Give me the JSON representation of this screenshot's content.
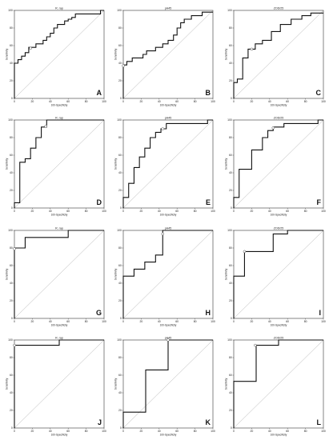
{
  "figure": {
    "panels_per_row": 3
  },
  "chart_data": [
    {
      "type": "line",
      "letter": "A",
      "title": "R. rap",
      "xlabel": "100-Specificity",
      "ylabel": "Sensitivity",
      "xlim": [
        0,
        100
      ],
      "ylim": [
        0,
        100
      ],
      "xticks": [
        0,
        20,
        40,
        60,
        80,
        100
      ],
      "yticks": [
        0,
        20,
        40,
        60,
        80,
        100
      ],
      "diagonal": true,
      "series": [
        {
          "x": [
            0,
            0,
            4,
            4,
            8,
            8,
            12,
            12,
            16,
            16,
            24,
            24,
            32,
            32,
            36,
            36,
            40,
            40,
            44,
            44,
            48,
            48,
            56,
            56,
            60,
            60,
            64,
            64,
            68,
            68,
            96,
            96,
            100
          ],
          "y": [
            0,
            40,
            40,
            44,
            44,
            48,
            48,
            52,
            52,
            58,
            58,
            62,
            62,
            66,
            66,
            70,
            70,
            74,
            74,
            80,
            80,
            84,
            84,
            88,
            88,
            90,
            90,
            92,
            92,
            96,
            96,
            100,
            100
          ]
        }
      ],
      "criterion": {
        "x": 18,
        "y": 57
      }
    },
    {
      "type": "line",
      "letter": "B",
      "title": "pH45",
      "xlabel": "100-Specificity",
      "ylabel": "Sensitivity",
      "xlim": [
        0,
        100
      ],
      "ylim": [
        0,
        100
      ],
      "xticks": [
        0,
        20,
        40,
        60,
        80,
        100
      ],
      "yticks": [
        0,
        20,
        40,
        60,
        80,
        100
      ],
      "diagonal": true,
      "series": [
        {
          "x": [
            0,
            0,
            4,
            4,
            10,
            10,
            22,
            22,
            26,
            26,
            36,
            36,
            44,
            44,
            50,
            50,
            56,
            56,
            60,
            60,
            64,
            64,
            68,
            68,
            76,
            76,
            88,
            88,
            100
          ],
          "y": [
            0,
            38,
            38,
            42,
            42,
            46,
            46,
            50,
            50,
            54,
            54,
            58,
            58,
            62,
            62,
            66,
            66,
            72,
            72,
            80,
            80,
            86,
            86,
            90,
            90,
            94,
            94,
            98,
            98
          ]
        }
      ],
      "criterion": {
        "x": 0,
        "y": 37
      }
    },
    {
      "type": "line",
      "letter": "C",
      "title": "ZOD/25",
      "xlabel": "100-Specificity",
      "ylabel": "Sensitivity",
      "xlim": [
        0,
        100
      ],
      "ylim": [
        0,
        100
      ],
      "xticks": [
        0,
        20,
        40,
        60,
        80,
        100
      ],
      "yticks": [
        0,
        20,
        40,
        60,
        80,
        100
      ],
      "diagonal": true,
      "series": [
        {
          "x": [
            0,
            0,
            4,
            4,
            10,
            10,
            16,
            16,
            24,
            24,
            32,
            32,
            42,
            42,
            52,
            52,
            64,
            64,
            76,
            76,
            86,
            86,
            100
          ],
          "y": [
            0,
            18,
            18,
            22,
            22,
            46,
            46,
            56,
            56,
            62,
            62,
            66,
            66,
            76,
            76,
            84,
            84,
            90,
            90,
            94,
            94,
            97,
            97
          ]
        }
      ],
      "criterion": {
        "x": 20,
        "y": 56
      }
    },
    {
      "type": "line",
      "letter": "D",
      "title": "R. rap",
      "xlabel": "100-Specificity",
      "ylabel": "Sensitivity",
      "xlim": [
        0,
        100
      ],
      "ylim": [
        0,
        100
      ],
      "xticks": [
        0,
        20,
        40,
        60,
        80,
        100
      ],
      "yticks": [
        0,
        20,
        40,
        60,
        80,
        100
      ],
      "diagonal": true,
      "series": [
        {
          "x": [
            0,
            0,
            6,
            6,
            12,
            12,
            18,
            18,
            24,
            24,
            30,
            30,
            36,
            36,
            100
          ],
          "y": [
            0,
            6,
            6,
            52,
            52,
            56,
            56,
            68,
            68,
            80,
            80,
            92,
            92,
            100,
            100
          ]
        }
      ],
      "criterion": {
        "x": 35,
        "y": 93
      }
    },
    {
      "type": "line",
      "letter": "E",
      "title": "pH45",
      "xlabel": "100-Specificity",
      "ylabel": "Sensitivity",
      "xlim": [
        0,
        100
      ],
      "ylim": [
        0,
        100
      ],
      "xticks": [
        0,
        20,
        40,
        60,
        80,
        100
      ],
      "yticks": [
        0,
        20,
        40,
        60,
        80,
        100
      ],
      "diagonal": true,
      "series": [
        {
          "x": [
            0,
            0,
            6,
            6,
            12,
            12,
            18,
            18,
            24,
            24,
            30,
            30,
            36,
            36,
            42,
            42,
            48,
            48,
            94,
            94,
            100
          ],
          "y": [
            0,
            12,
            12,
            28,
            28,
            46,
            46,
            58,
            58,
            68,
            68,
            80,
            80,
            86,
            86,
            90,
            90,
            96,
            96,
            100,
            100
          ]
        }
      ],
      "criterion": {
        "x": 44,
        "y": 90
      }
    },
    {
      "type": "line",
      "letter": "F",
      "title": "ZOD/25",
      "xlabel": "100-Specificity",
      "ylabel": "Sensitivity",
      "xlim": [
        0,
        100
      ],
      "ylim": [
        0,
        100
      ],
      "xticks": [
        0,
        20,
        40,
        60,
        80,
        100
      ],
      "yticks": [
        0,
        20,
        40,
        60,
        80,
        100
      ],
      "diagonal": true,
      "series": [
        {
          "x": [
            0,
            0,
            6,
            6,
            20,
            20,
            32,
            32,
            38,
            38,
            44,
            44,
            56,
            56,
            94,
            94,
            100
          ],
          "y": [
            0,
            12,
            12,
            44,
            44,
            66,
            66,
            80,
            80,
            88,
            88,
            92,
            92,
            96,
            96,
            100,
            100
          ]
        }
      ],
      "criterion": {
        "x": 44,
        "y": 91
      }
    },
    {
      "type": "line",
      "letter": "G",
      "title": "R. rap",
      "xlabel": "100-Specificity",
      "ylabel": "Sensitivity",
      "xlim": [
        0,
        100
      ],
      "ylim": [
        0,
        100
      ],
      "xticks": [
        0,
        20,
        40,
        60,
        80,
        100
      ],
      "yticks": [
        0,
        20,
        40,
        60,
        80,
        100
      ],
      "diagonal": true,
      "series": [
        {
          "x": [
            0,
            0,
            12,
            12,
            60,
            60,
            100
          ],
          "y": [
            0,
            80,
            80,
            92,
            92,
            100,
            100
          ]
        }
      ],
      "criterion": {
        "x": 0,
        "y": 79
      }
    },
    {
      "type": "line",
      "letter": "H",
      "title": "pH45",
      "xlabel": "100-Specificity",
      "ylabel": "Sensitivity",
      "xlim": [
        0,
        100
      ],
      "ylim": [
        0,
        100
      ],
      "xticks": [
        0,
        20,
        40,
        60,
        80,
        100
      ],
      "yticks": [
        0,
        20,
        40,
        60,
        80,
        100
      ],
      "diagonal": true,
      "series": [
        {
          "x": [
            0,
            0,
            12,
            12,
            24,
            24,
            36,
            36,
            44,
            44,
            100
          ],
          "y": [
            0,
            48,
            48,
            56,
            56,
            64,
            64,
            72,
            72,
            100,
            100
          ]
        }
      ],
      "criterion": {
        "x": 44,
        "y": 96
      }
    },
    {
      "type": "line",
      "letter": "I",
      "title": "ZOD/25",
      "xlabel": "100-Specificity",
      "ylabel": "Sensitivity",
      "xlim": [
        0,
        100
      ],
      "ylim": [
        0,
        100
      ],
      "xticks": [
        0,
        20,
        40,
        60,
        80,
        100
      ],
      "yticks": [
        0,
        20,
        40,
        60,
        80,
        100
      ],
      "diagonal": true,
      "series": [
        {
          "x": [
            0,
            0,
            12,
            12,
            44,
            44,
            60,
            60,
            100
          ],
          "y": [
            0,
            48,
            48,
            76,
            76,
            96,
            96,
            100,
            100
          ]
        }
      ],
      "criterion": {
        "x": 12,
        "y": 76
      }
    },
    {
      "type": "line",
      "letter": "J",
      "title": "R. rap",
      "xlabel": "100-Specificity",
      "ylabel": "Sensitivity",
      "xlim": [
        0,
        100
      ],
      "ylim": [
        0,
        100
      ],
      "xticks": [
        0,
        20,
        40,
        60,
        80,
        100
      ],
      "yticks": [
        0,
        20,
        40,
        60,
        80,
        100
      ],
      "diagonal": true,
      "series": [
        {
          "x": [
            0,
            0,
            50,
            50,
            100
          ],
          "y": [
            0,
            94,
            94,
            100,
            100
          ]
        }
      ],
      "criterion": {
        "x": 0,
        "y": 94
      }
    },
    {
      "type": "line",
      "letter": "K",
      "title": "pH45",
      "xlabel": "100-Specificity",
      "ylabel": "Sensitivity",
      "xlim": [
        0,
        100
      ],
      "ylim": [
        0,
        100
      ],
      "xticks": [
        0,
        20,
        40,
        60,
        80,
        100
      ],
      "yticks": [
        0,
        20,
        40,
        60,
        80,
        100
      ],
      "diagonal": true,
      "series": [
        {
          "x": [
            0,
            0,
            25,
            25,
            50,
            50,
            100
          ],
          "y": [
            0,
            18,
            18,
            66,
            66,
            100,
            100
          ]
        }
      ],
      "criterion": {
        "x": 50,
        "y": 100
      }
    },
    {
      "type": "line",
      "letter": "L",
      "title": "ZOD/25",
      "xlabel": "100-Specificity",
      "ylabel": "Sensitivity",
      "xlim": [
        0,
        100
      ],
      "ylim": [
        0,
        100
      ],
      "xticks": [
        0,
        20,
        40,
        60,
        80,
        100
      ],
      "yticks": [
        0,
        20,
        40,
        60,
        80,
        100
      ],
      "diagonal": true,
      "series": [
        {
          "x": [
            0,
            0,
            25,
            25,
            50,
            50,
            100
          ],
          "y": [
            0,
            53,
            53,
            94,
            94,
            100,
            100
          ]
        }
      ],
      "criterion": {
        "x": 24,
        "y": 94
      }
    }
  ]
}
